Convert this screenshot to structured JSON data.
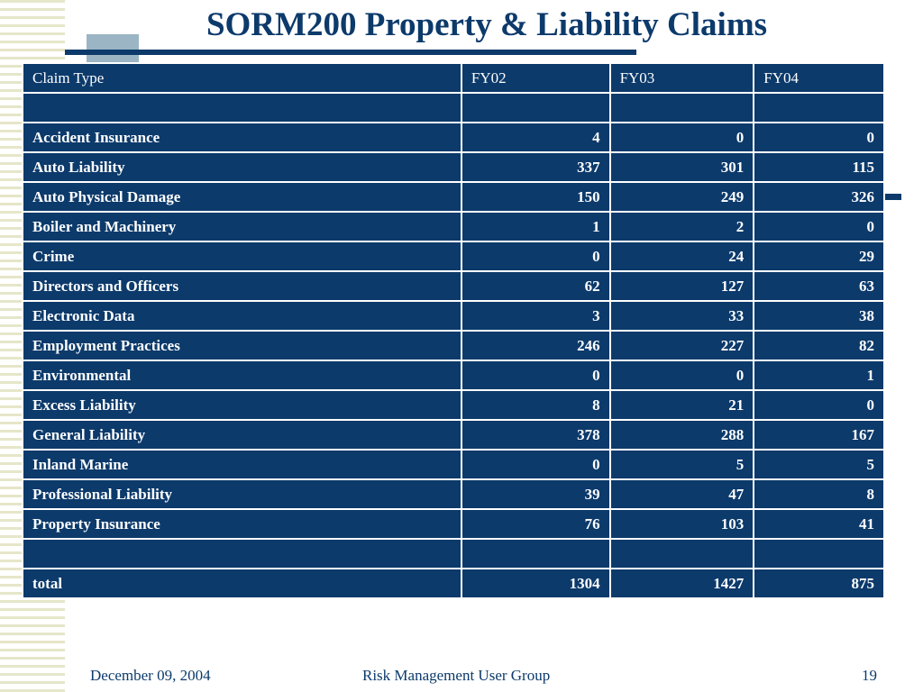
{
  "title": "SORM200 Property & Liability Claims",
  "table": {
    "headers": [
      "Claim Type",
      "FY02",
      "FY03",
      "FY04"
    ],
    "rows": [
      [
        "",
        "",
        "",
        ""
      ],
      [
        "Accident Insurance",
        "4",
        "0",
        "0"
      ],
      [
        "Auto Liability",
        "337",
        "301",
        "115"
      ],
      [
        "Auto Physical Damage",
        "150",
        "249",
        "326"
      ],
      [
        "Boiler and Machinery",
        "1",
        "2",
        "0"
      ],
      [
        "Crime",
        "0",
        "24",
        "29"
      ],
      [
        "Directors and Officers",
        "62",
        "127",
        "63"
      ],
      [
        "Electronic Data",
        "3",
        "33",
        "38"
      ],
      [
        "Employment Practices",
        "246",
        "227",
        "82"
      ],
      [
        "Environmental",
        "0",
        "0",
        "1"
      ],
      [
        "Excess Liability",
        "8",
        "21",
        "0"
      ],
      [
        "General Liability",
        "378",
        "288",
        "167"
      ],
      [
        "Inland Marine",
        "0",
        "5",
        "5"
      ],
      [
        "Professional Liability",
        "39",
        "47",
        "8"
      ],
      [
        "Property Insurance",
        "76",
        "103",
        "41"
      ],
      [
        "",
        "",
        "",
        ""
      ],
      [
        "total",
        "1304",
        "1427",
        "875"
      ]
    ]
  },
  "footer": {
    "date": "December 09, 2004",
    "center": "Risk Management User Group",
    "page": "19"
  },
  "colors": {
    "navy": "#0c3a6b",
    "accent_square": "#9bb5c4",
    "stripe": "#e6e6c9"
  }
}
